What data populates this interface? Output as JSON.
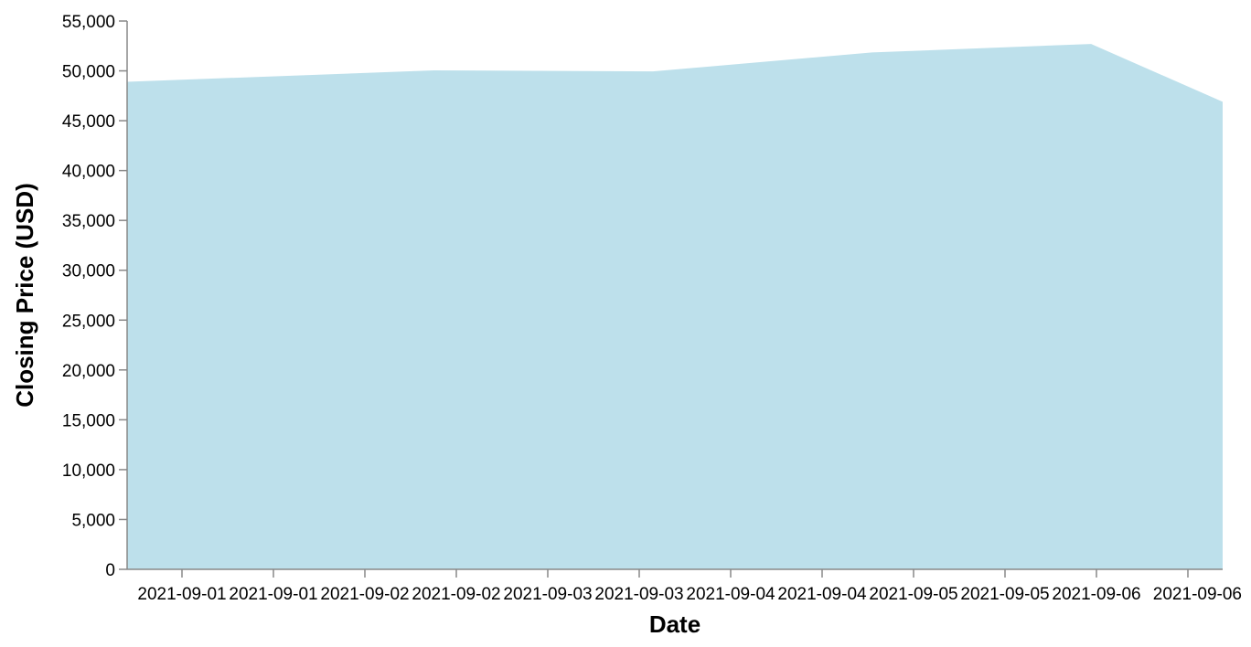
{
  "chart_data": {
    "type": "area",
    "x": [
      "2021-09-01",
      "2021-09-02",
      "2021-09-03",
      "2021-09-04",
      "2021-09-05",
      "2021-09-06"
    ],
    "y": [
      48900,
      50050,
      49950,
      51850,
      52700,
      46900
    ],
    "xlabel": "Date",
    "ylabel": "Closing Price (USD)",
    "ylim": [
      0,
      55000
    ],
    "yticks": [
      0,
      5000,
      10000,
      15000,
      20000,
      25000,
      30000,
      35000,
      40000,
      45000,
      50000,
      55000
    ],
    "ytick_labels": [
      "0",
      "5,000",
      "10,000",
      "15,000",
      "20,000",
      "25,000",
      "30,000",
      "35,000",
      "40,000",
      "45,000",
      "50,000",
      "55,000"
    ],
    "xtick_labels": [
      "2021-09-01",
      "2021-09-01",
      "2021-09-02",
      "2021-09-02",
      "2021-09-03",
      "2021-09-03",
      "2021-09-04",
      "2021-09-04",
      "2021-09-05",
      "2021-09-05",
      "2021-09-06",
      "2021-09-06"
    ],
    "fill_color": "#add8e6",
    "fill_opacity": 0.8,
    "grid": false,
    "legend": "none"
  }
}
